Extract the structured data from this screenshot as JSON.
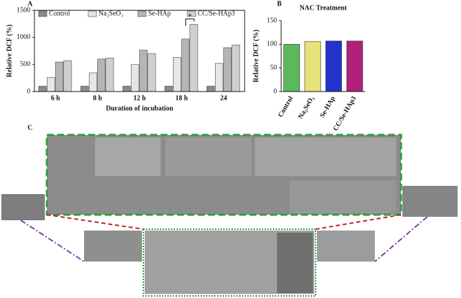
{
  "chart_data": [
    {
      "type": "bar",
      "panel": "A",
      "y_label": "Relative DCF (%)",
      "x_label": "Duration of incubation",
      "categories": [
        "6 h",
        "8 h",
        "12 h",
        "18 h",
        "24"
      ],
      "series": [
        {
          "name": "Control",
          "color": "#8a8a8a",
          "values": [
            100,
            100,
            100,
            100,
            100
          ]
        },
        {
          "name": "Na₂SeO₃",
          "color": "#e6e6e6",
          "values": [
            260,
            345,
            500,
            630,
            520
          ]
        },
        {
          "name": "Se-HAp",
          "color": "#b5b5b5",
          "values": [
            545,
            600,
            765,
            970,
            810
          ]
        },
        {
          "name": "CC/Se-HAp3",
          "color": "#cfcfcf",
          "values": [
            570,
            620,
            700,
            1240,
            860
          ]
        }
      ],
      "annotation": "*",
      "ylim": [
        0,
        1500
      ],
      "yticks": [
        0,
        500,
        1000,
        1500
      ]
    },
    {
      "type": "bar",
      "panel": "B",
      "title": "NAC Treatment",
      "y_label": "Relative DCF (%)",
      "categories": [
        "Control",
        "Na₂SeO₃",
        "Se-HAp",
        "CC/Se-HAp3"
      ],
      "values": [
        100,
        106,
        107,
        107
      ],
      "colors": [
        "#5cb85c",
        "#e8e27a",
        "#2233cc",
        "#b0207a"
      ],
      "ylim": [
        0,
        150
      ],
      "yticks": [
        0,
        50,
        100,
        150
      ]
    }
  ],
  "panel_c": {
    "label": "C"
  }
}
